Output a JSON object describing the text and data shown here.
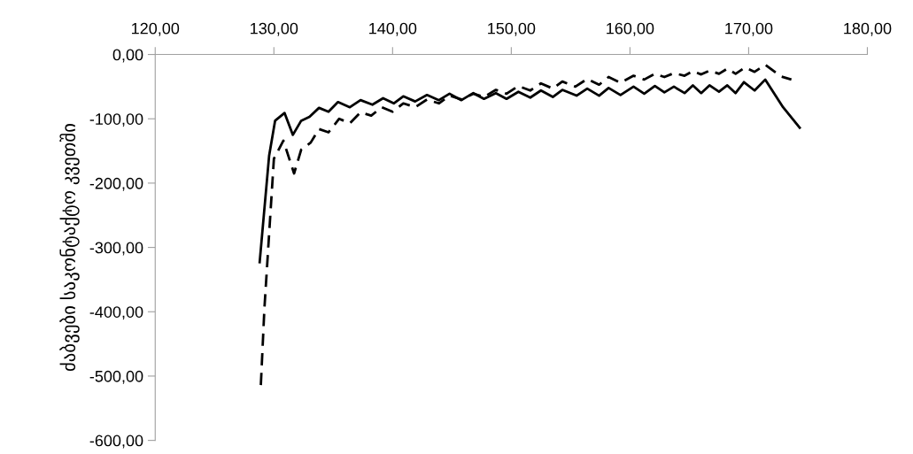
{
  "chart_data": {
    "type": "line",
    "ylabel": "ძაბვები საკონტაქტო კვეთში",
    "xlim": [
      120,
      180
    ],
    "xticks": [
      {
        "value": 120,
        "label": "120,00"
      },
      {
        "value": 130,
        "label": "130,00"
      },
      {
        "value": 140,
        "label": "140,00"
      },
      {
        "value": 150,
        "label": "150,00"
      },
      {
        "value": 160,
        "label": "160,00"
      },
      {
        "value": 170,
        "label": "170,00"
      },
      {
        "value": 180,
        "label": "180,00"
      }
    ],
    "ylim": [
      -600,
      0
    ],
    "yticks": [
      {
        "value": 0,
        "label": "0,00"
      },
      {
        "value": -100,
        "label": "-100,00"
      },
      {
        "value": -200,
        "label": "-200,00"
      },
      {
        "value": -300,
        "label": "-300,00"
      },
      {
        "value": -400,
        "label": "-400,00"
      },
      {
        "value": -500,
        "label": "-500,00"
      },
      {
        "value": -600,
        "label": "-600,00"
      }
    ],
    "grid": false,
    "marker": "none",
    "series": [
      {
        "color": "#000000",
        "line_style": "solid",
        "x": [
          128.8,
          129.6,
          130.1,
          130.9,
          131.6,
          132.3,
          133.0,
          133.8,
          134.6,
          135.4,
          136.4,
          137.3,
          138.3,
          139.2,
          140.1,
          140.9,
          141.9,
          142.9,
          143.9,
          144.8,
          145.8,
          146.8,
          147.7,
          148.7,
          149.6,
          150.6,
          151.6,
          152.5,
          153.5,
          154.3,
          155.5,
          156.4,
          157.4,
          158.2,
          159.2,
          160.3,
          161.2,
          162.1,
          162.9,
          163.7,
          164.6,
          165.3,
          166.0,
          166.7,
          167.5,
          168.2,
          168.9,
          169.6,
          170.5,
          171.4,
          172.9,
          174.3
        ],
        "values": [
          -323,
          -157,
          -103,
          -91,
          -125,
          -103,
          -97,
          -83,
          -89,
          -74,
          -82,
          -71,
          -78,
          -68,
          -76,
          -65,
          -73,
          -63,
          -71,
          -61,
          -71,
          -60,
          -69,
          -60,
          -69,
          -58,
          -67,
          -56,
          -66,
          -55,
          -64,
          -53,
          -64,
          -52,
          -63,
          -50,
          -61,
          -49,
          -59,
          -50,
          -60,
          -48,
          -60,
          -48,
          -58,
          -48,
          -60,
          -43,
          -56,
          -39,
          -82,
          -114
        ]
      },
      {
        "color": "#000000",
        "line_style": "dashed",
        "x": [
          128.9,
          129.2,
          130.0,
          130.8,
          131.7,
          132.3,
          133.1,
          133.8,
          134.6,
          135.5,
          136.4,
          137.3,
          138.2,
          139.1,
          140.0,
          140.9,
          141.9,
          142.9,
          143.9,
          144.8,
          145.8,
          146.8,
          147.7,
          148.7,
          149.6,
          150.6,
          151.6,
          152.5,
          153.5,
          154.3,
          155.4,
          156.4,
          157.4,
          158.2,
          159.2,
          160.3,
          161.2,
          162.1,
          162.9,
          163.7,
          164.6,
          165.3,
          166.0,
          166.7,
          167.5,
          168.2,
          168.9,
          169.7,
          170.5,
          171.4,
          172.7,
          173.6
        ],
        "values": [
          -514,
          -395,
          -162,
          -134,
          -185,
          -148,
          -137,
          -116,
          -121,
          -100,
          -107,
          -90,
          -95,
          -82,
          -89,
          -76,
          -82,
          -70,
          -76,
          -64,
          -70,
          -61,
          -66,
          -55,
          -61,
          -49,
          -56,
          -45,
          -53,
          -42,
          -50,
          -38,
          -47,
          -35,
          -44,
          -33,
          -39,
          -30,
          -35,
          -29,
          -33,
          -26,
          -31,
          -25,
          -30,
          -22,
          -30,
          -20,
          -27,
          -16,
          -34,
          -39
        ]
      }
    ]
  }
}
